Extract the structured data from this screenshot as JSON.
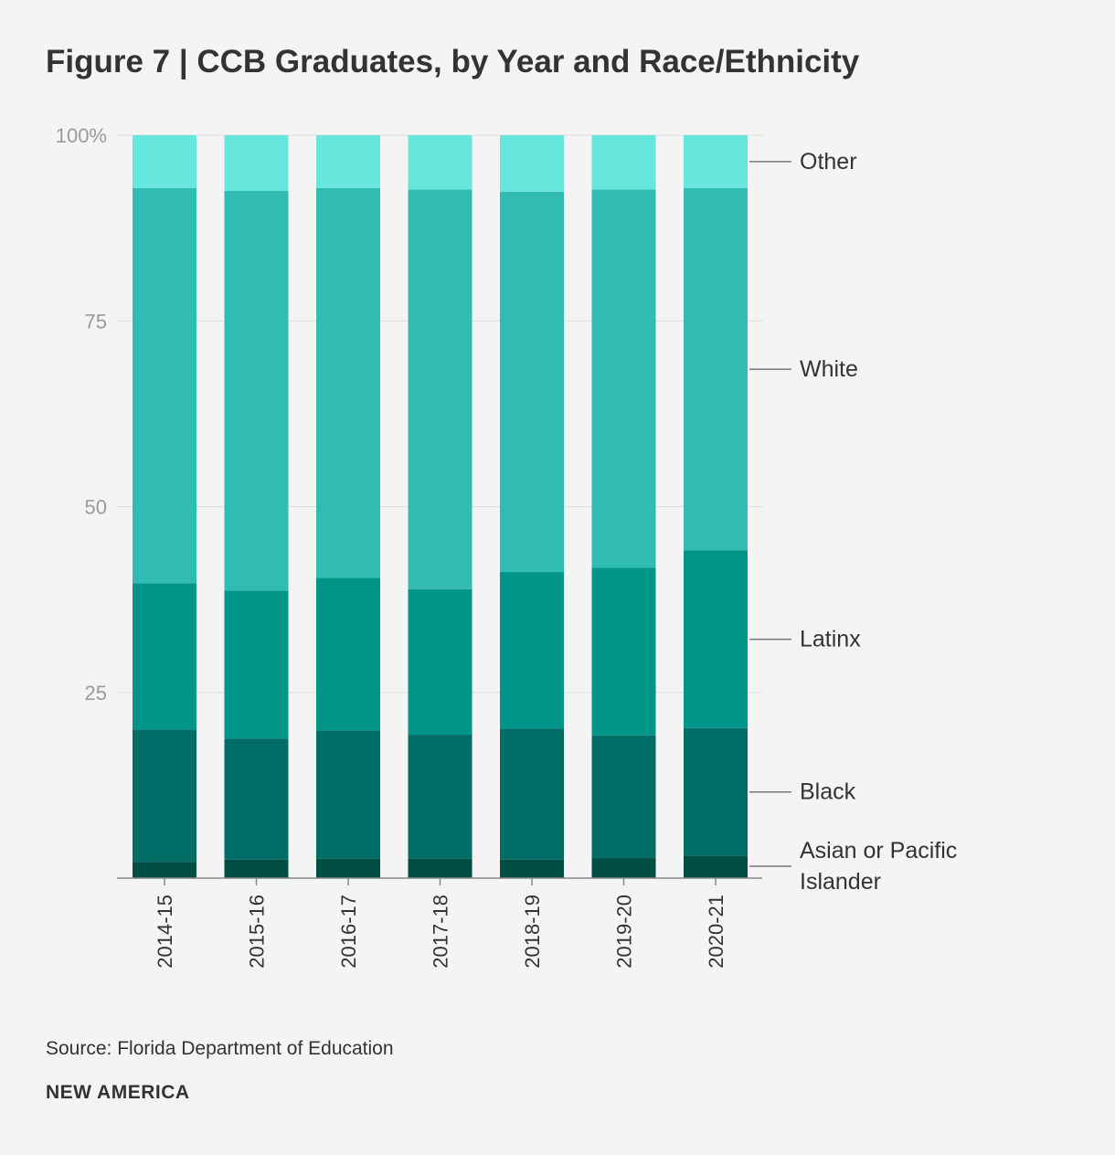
{
  "title": "Figure 7 | CCB Graduates, by Year and Race/Ethnicity",
  "source": "Source: Florida Department of Education",
  "brand": "NEW AMERICA",
  "chart_data": {
    "type": "bar",
    "stacked": true,
    "title": "Figure 7 | CCB Graduates, by Year and Race/Ethnicity",
    "categories": [
      "2014-15",
      "2015-16",
      "2016-17",
      "2017-18",
      "2018-19",
      "2019-20",
      "2020-21"
    ],
    "series": [
      {
        "name": "Asian or Pacific Islander",
        "color": "#004d44",
        "values": [
          2.2,
          2.5,
          2.6,
          2.6,
          2.5,
          2.7,
          3.0
        ]
      },
      {
        "name": "Black",
        "color": "#006d66",
        "values": [
          17.8,
          16.3,
          17.3,
          16.7,
          17.6,
          16.5,
          17.2
        ]
      },
      {
        "name": "Latinx",
        "color": "#009589",
        "values": [
          19.7,
          19.9,
          20.5,
          19.6,
          21.1,
          22.6,
          23.9
        ]
      },
      {
        "name": "White",
        "color": "#31bcb3",
        "values": [
          53.2,
          53.8,
          52.5,
          53.8,
          51.2,
          50.9,
          48.8
        ]
      },
      {
        "name": "Other",
        "color": "#66e6dd",
        "values": [
          7.1,
          7.5,
          7.1,
          7.3,
          7.6,
          7.3,
          7.1
        ]
      }
    ],
    "ylim": [
      0,
      100
    ],
    "yticks": [
      {
        "value": 100,
        "label": "100%"
      },
      {
        "value": 75,
        "label": "75"
      },
      {
        "value": 50,
        "label": "50"
      },
      {
        "value": 25,
        "label": "25"
      }
    ],
    "xlabel": "",
    "ylabel": "",
    "grid": true,
    "legend": "right, direct labels",
    "legend_labels": [
      {
        "series": "Other",
        "lines": [
          "Other"
        ]
      },
      {
        "series": "White",
        "lines": [
          "White"
        ]
      },
      {
        "series": "Latinx",
        "lines": [
          "Latinx"
        ]
      },
      {
        "series": "Black",
        "lines": [
          "Black"
        ]
      },
      {
        "series": "Asian or Pacific Islander",
        "lines": [
          "Asian or Pacific",
          "Islander"
        ]
      }
    ]
  }
}
